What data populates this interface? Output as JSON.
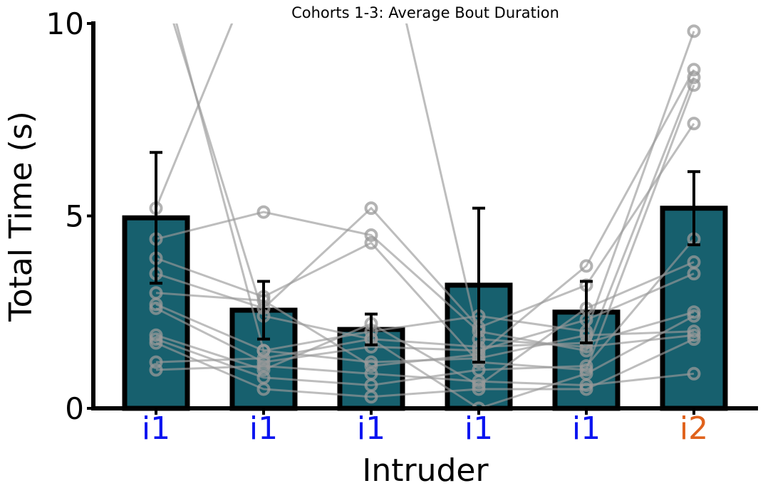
{
  "chart_data": {
    "type": "bar",
    "title": "Cohorts 1-3: Average Bout Duration",
    "xlabel": "Intruder",
    "ylabel": "Total Time (s)",
    "ylim": [
      0,
      10
    ],
    "yticks": [
      "0",
      "5",
      "10"
    ],
    "grid": false,
    "categories": [
      "i1",
      "i1",
      "i1",
      "i1",
      "i1",
      "i2"
    ],
    "category_colors": [
      "#0a14f0",
      "#0a14f0",
      "#0a14f0",
      "#0a14f0",
      "#0a14f0",
      "#e0621c"
    ],
    "values": [
      4.95,
      2.55,
      2.05,
      3.2,
      2.5,
      5.2
    ],
    "error": [
      1.7,
      0.75,
      0.4,
      2.0,
      0.8,
      0.95
    ],
    "bar_color": "#17606e",
    "bar_edge_color": "#000000",
    "point_color": "#9a9a9a",
    "individual_lines": [
      [
        11.5,
        2.4,
        1.8,
        1.6,
        1.7,
        2.5
      ],
      [
        12.0,
        1.5,
        1.2,
        1.3,
        1.9,
        2.0
      ],
      [
        5.2,
        12.0,
        14.0,
        1.8,
        1.6,
        1.9
      ],
      [
        4.4,
        5.1,
        4.5,
        2.0,
        1.5,
        8.6
      ],
      [
        3.9,
        2.9,
        4.3,
        1.2,
        1.0,
        8.4
      ],
      [
        3.5,
        2.6,
        5.2,
        2.1,
        3.2,
        7.4
      ],
      [
        3.0,
        2.8,
        1.1,
        1.4,
        3.7,
        8.8
      ],
      [
        2.7,
        1.5,
        2.0,
        2.4,
        2.0,
        9.8
      ],
      [
        2.6,
        1.2,
        1.6,
        1.5,
        2.3,
        3.5
      ],
      [
        1.9,
        1.0,
        2.2,
        0.6,
        2.6,
        3.8
      ],
      [
        1.8,
        0.8,
        0.6,
        1.0,
        1.1,
        4.4
      ],
      [
        1.7,
        0.5,
        0.3,
        0.5,
        0.5,
        1.8
      ],
      [
        1.2,
        1.3,
        1.8,
        0.0,
        0.9,
        2.4
      ],
      [
        1.0,
        1.1,
        0.9,
        0.7,
        0.6,
        0.9
      ]
    ]
  }
}
